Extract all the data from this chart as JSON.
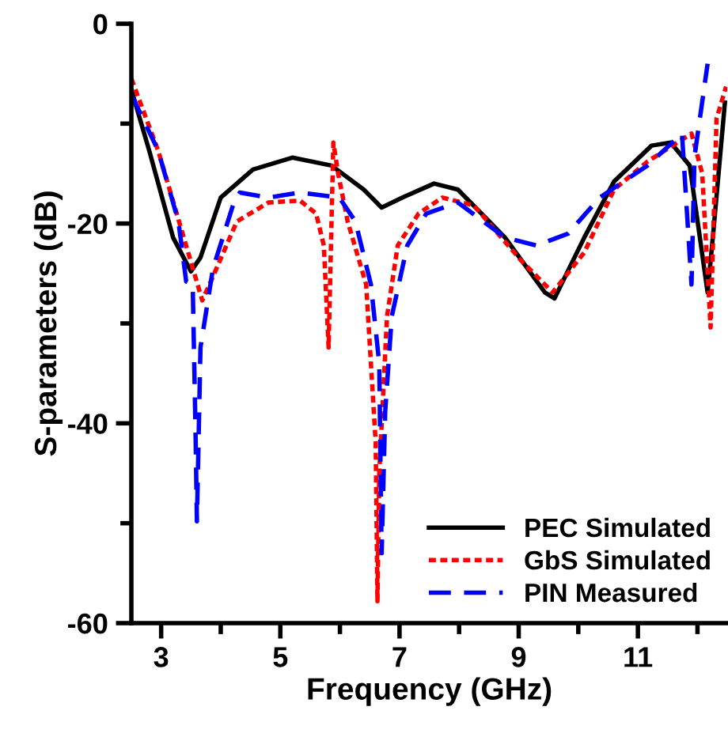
{
  "chart_data": {
    "type": "line",
    "xlabel": "Frequency (GHz)",
    "ylabel": "S-parameters (dB)",
    "xlim": [
      2.5,
      12.5
    ],
    "ylim": [
      -60,
      0
    ],
    "xticks": [
      3,
      5,
      7,
      9,
      11
    ],
    "yticks": [
      -60,
      -40,
      -20,
      0
    ],
    "grid": false,
    "legend": "bottom right",
    "series": [
      {
        "name": "PEC Simulated",
        "color": "#000000",
        "line_style": "solid",
        "x": [
          2.5,
          2.8,
          3.2,
          3.5,
          3.66,
          4.0,
          4.54,
          5.2,
          5.86,
          6.4,
          6.7,
          7.05,
          7.58,
          7.98,
          8.77,
          9.44,
          9.6,
          10.1,
          10.6,
          11.23,
          11.55,
          11.87,
          12.17,
          12.27,
          12.46
        ],
        "values": [
          -6.6,
          -12.7,
          -21.4,
          -24.8,
          -23.4,
          -17.4,
          -14.6,
          -13.4,
          -14.2,
          -16.6,
          -18.4,
          -17.4,
          -16,
          -16.6,
          -21.4,
          -26.9,
          -27.5,
          -21.4,
          -15.8,
          -12.2,
          -11.9,
          -14.2,
          -26.9,
          -20.6,
          -7.9
        ]
      },
      {
        "name": "GbS Simulated",
        "color": "#ff0000",
        "line_style": "dotted",
        "x": [
          2.5,
          2.95,
          3.34,
          3.69,
          3.87,
          4.27,
          4.8,
          5.33,
          5.6,
          5.73,
          5.81,
          5.89,
          5.97,
          6.13,
          6.44,
          6.6,
          6.63,
          6.66,
          6.79,
          6.97,
          7.32,
          7.72,
          8.25,
          9.04,
          9.57,
          10.1,
          10.6,
          11.16,
          11.9,
          12.08,
          12.22,
          12.32,
          12.48
        ],
        "values": [
          -5.5,
          -12.7,
          -20.6,
          -27.7,
          -25.3,
          -19.8,
          -17.9,
          -17.7,
          -19,
          -22.2,
          -32.4,
          -11.9,
          -15,
          -19.8,
          -26.1,
          -41.9,
          -57.8,
          -45,
          -29.3,
          -22.2,
          -19,
          -17.4,
          -18.2,
          -23.7,
          -26.9,
          -22.9,
          -16.6,
          -13.8,
          -11,
          -15,
          -30.4,
          -9.5,
          -6.3
        ]
      },
      {
        "name": "PIN Measured",
        "color": "#0000ff",
        "line_style": "dashed",
        "x": [
          2.5,
          2.95,
          3.29,
          3.42,
          3.53,
          3.58,
          3.6,
          3.66,
          3.87,
          4.22,
          4.32,
          4.8,
          5.33,
          5.99,
          6.26,
          6.52,
          6.66,
          6.7,
          6.76,
          6.87,
          7.13,
          7.45,
          7.98,
          8.77,
          9.3,
          9.83,
          10.36,
          11.16,
          11.74,
          11.9,
          11.95,
          12.17
        ],
        "values": [
          -7.1,
          -12.7,
          -19.8,
          -25.8,
          -26.1,
          -41.9,
          -49.8,
          -32.4,
          -24.5,
          -17.9,
          -16.9,
          -17.4,
          -16.9,
          -17.4,
          -19.8,
          -26.1,
          -34,
          -53,
          -38.8,
          -29.3,
          -22.2,
          -19,
          -17.9,
          -21.4,
          -22.2,
          -21,
          -17.4,
          -14.2,
          -11,
          -26.1,
          -13.3,
          -4.0
        ]
      }
    ]
  }
}
